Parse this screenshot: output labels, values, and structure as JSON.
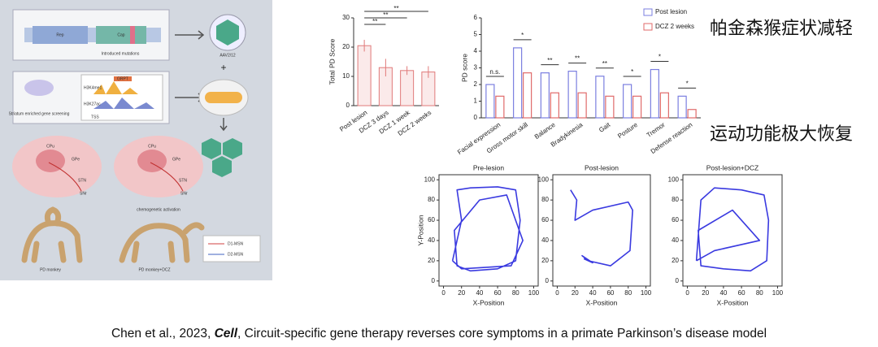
{
  "diagram": {
    "labels": [
      "Rep",
      "Cap",
      "Introduced mutations",
      "AAV2/12",
      "H3K4me1",
      "H3K27ac",
      "GRPT",
      "Striatum enriched gene screening",
      "TSS",
      "CPu",
      "GPe",
      "STN",
      "SNr",
      "PD monkey",
      "PD monkey+DCZ",
      "chemogenetic activation",
      "D1-MSN",
      "D2-MSN",
      "+"
    ]
  },
  "headings": [
    "帕金森猴症状减轻",
    "运动功能极大恢复"
  ],
  "caption": {
    "prefix": "Chen et al., 2023, ",
    "journal": "Cell",
    "rest": ", Circuit-specific gene therapy reverses core symptoms in a primate Parkinson’s disease model"
  },
  "chart_data": [
    {
      "type": "bar",
      "ylabel": "Total PD Score",
      "categories": [
        "Post lesion",
        "DCZ 3 days",
        "DCZ 1 week",
        "DCZ 2 weeks"
      ],
      "values": [
        20.5,
        13,
        12,
        11.5
      ],
      "errors": [
        2,
        3,
        1.5,
        2
      ],
      "color": "#e07a7a",
      "ylim": [
        0,
        30
      ],
      "yticks": [
        0,
        10,
        20,
        30
      ],
      "significance": [
        "**",
        "**",
        "**"
      ]
    },
    {
      "type": "grouped-bar",
      "ylabel": "PD score",
      "categories": [
        "Facial expression",
        "Gross motor skill",
        "Balance",
        "Bradykinesia",
        "Gait",
        "Posture",
        "Tremor",
        "Defense reaction"
      ],
      "series": [
        {
          "name": "Post lesion",
          "color": "#7b7fe0",
          "values": [
            2.0,
            4.2,
            2.7,
            2.8,
            2.5,
            2.0,
            2.9,
            1.3
          ]
        },
        {
          "name": "DCZ 2 weeks",
          "color": "#e06a6a",
          "values": [
            1.3,
            2.7,
            1.5,
            1.5,
            1.3,
            1.3,
            1.5,
            0.5
          ]
        }
      ],
      "significance": [
        "n.s.",
        "*",
        "**",
        "**",
        "**",
        "*",
        "*",
        "*"
      ],
      "ylim": [
        0,
        6
      ],
      "yticks": [
        0,
        1,
        2,
        3,
        4,
        5,
        6
      ],
      "legend": "top-right"
    },
    {
      "type": "line",
      "title": "Pre-lesion",
      "xlabel": "X-Position",
      "ylabel": "Y-Position",
      "color": "#3a3ae0",
      "x": [
        10,
        20,
        15,
        30,
        60,
        80,
        85,
        80,
        60,
        30,
        15,
        12,
        40,
        70,
        88,
        75,
        20,
        10
      ],
      "values": [
        20,
        60,
        90,
        92,
        93,
        90,
        60,
        20,
        12,
        10,
        15,
        50,
        80,
        85,
        40,
        15,
        12,
        20
      ],
      "xlim": [
        -5,
        105
      ],
      "ylim": [
        -5,
        105
      ],
      "xticks": [
        0,
        20,
        40,
        60,
        80,
        100
      ],
      "yticks": [
        0,
        20,
        40,
        60,
        80,
        100
      ]
    },
    {
      "type": "line",
      "title": "Post-lesion",
      "xlabel": "X-Position",
      "color": "#3a3ae0",
      "x": [
        15,
        22,
        20,
        40,
        80,
        85,
        82,
        60,
        35,
        28,
        40,
        30
      ],
      "values": [
        90,
        80,
        60,
        70,
        78,
        70,
        30,
        15,
        20,
        25,
        18,
        22
      ],
      "xlim": [
        -5,
        105
      ],
      "ylim": [
        -5,
        105
      ],
      "xticks": [
        0,
        20,
        40,
        60,
        80,
        100
      ],
      "yticks": [
        0,
        20,
        40,
        60,
        80,
        100
      ]
    },
    {
      "type": "line",
      "title": "Post-lesion+DCZ",
      "xlabel": "X-Position",
      "color": "#3a3ae0",
      "x": [
        10,
        15,
        30,
        60,
        85,
        90,
        88,
        70,
        40,
        15,
        12,
        50,
        80,
        30,
        10
      ],
      "values": [
        20,
        80,
        92,
        90,
        85,
        60,
        20,
        10,
        12,
        15,
        50,
        70,
        40,
        30,
        20
      ],
      "xlim": [
        -5,
        105
      ],
      "ylim": [
        -5,
        105
      ],
      "xticks": [
        0,
        20,
        40,
        60,
        80,
        100
      ],
      "yticks": [
        0,
        20,
        40,
        60,
        80,
        100
      ]
    }
  ]
}
